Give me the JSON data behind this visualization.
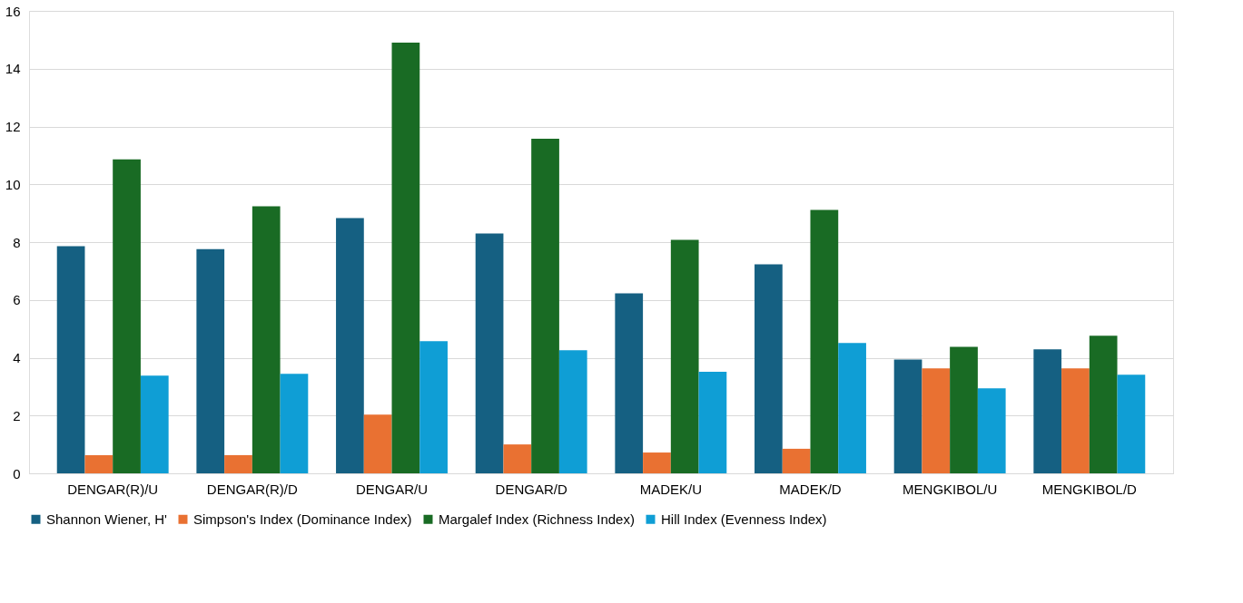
{
  "chart_data": {
    "type": "bar",
    "categories": [
      "DENGAR(R)/U",
      "DENGAR(R)/D",
      "DENGAR/U",
      "DENGAR/D",
      "MADEK/U",
      "MADEK/D",
      "MENGKIBOL/U",
      "MENGKIBOL/D"
    ],
    "series": [
      {
        "name": "Shannon Wiener, H'",
        "color": "#156082",
        "values": [
          7.86,
          7.76,
          8.83,
          8.3,
          6.23,
          7.23,
          3.94,
          4.29
        ]
      },
      {
        "name": "Simpson's Index (Dominance Index)",
        "color": "#e97132",
        "values": [
          0.63,
          0.63,
          2.03,
          1.0,
          0.72,
          0.85,
          3.63,
          3.63
        ]
      },
      {
        "name": "Margalef Index (Richness Index)",
        "color": "#196b24",
        "values": [
          10.86,
          9.24,
          14.9,
          11.58,
          8.08,
          9.11,
          4.38,
          4.76
        ]
      },
      {
        "name": "Hill Index (Evenness Index)",
        "color": "#0f9ed5",
        "values": [
          3.38,
          3.44,
          4.57,
          4.26,
          3.51,
          4.51,
          2.94,
          3.41
        ]
      }
    ],
    "ylim": [
      0,
      16
    ],
    "yticks": [
      0,
      2,
      4,
      6,
      8,
      10,
      12,
      14,
      16
    ],
    "grid": "y",
    "legend": "bottom"
  }
}
